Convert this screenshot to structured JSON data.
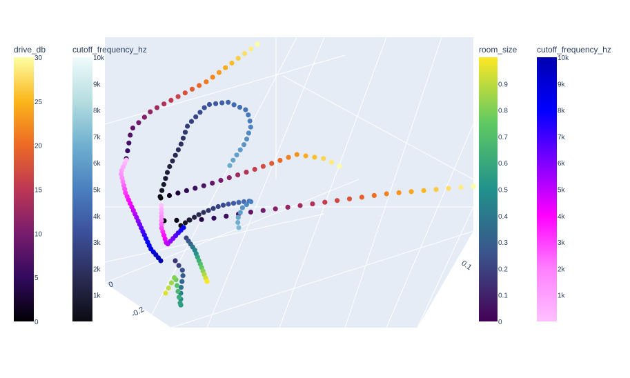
{
  "chart_data": {
    "type": "scatter3d",
    "title": "",
    "scene": {
      "background": "#e5ecf6",
      "gridColor": "#ffffff",
      "visibleTickLabels": [
        "0",
        "-0.2",
        "0.1"
      ]
    },
    "colorbars": [
      {
        "title": "drive_db",
        "colorscale": [
          "#000004",
          "#320a5e",
          "#781c6d",
          "#bc3754",
          "#ed6925",
          "#fbb61a",
          "#fcffa4"
        ],
        "range": [
          0,
          30
        ],
        "ticks": [
          {
            "value": 0,
            "label": "0"
          },
          {
            "value": 5,
            "label": "5"
          },
          {
            "value": 10,
            "label": "10"
          },
          {
            "value": 15,
            "label": "15"
          },
          {
            "value": 20,
            "label": "20"
          },
          {
            "value": 25,
            "label": "25"
          },
          {
            "value": 30,
            "label": "30"
          }
        ]
      },
      {
        "title": "cutoff_frequency_hz",
        "colorscale": [
          "#0b0b12",
          "#2b2c55",
          "#3c4f9a",
          "#4a7fbf",
          "#6fb0cf",
          "#b5dde0",
          "#f0fbfb"
        ],
        "range": [
          0,
          10000
        ],
        "ticks": [
          {
            "value": 1000,
            "label": "1k"
          },
          {
            "value": 2000,
            "label": "2k"
          },
          {
            "value": 3000,
            "label": "3k"
          },
          {
            "value": 4000,
            "label": "4k"
          },
          {
            "value": 5000,
            "label": "5k"
          },
          {
            "value": 6000,
            "label": "6k"
          },
          {
            "value": 7000,
            "label": "7k"
          },
          {
            "value": 8000,
            "label": "8k"
          },
          {
            "value": 9000,
            "label": "9k"
          },
          {
            "value": 10000,
            "label": "10k"
          }
        ]
      },
      {
        "title": "room_size",
        "colorscale": [
          "#440154",
          "#3b528b",
          "#21918c",
          "#5ec962",
          "#fde725"
        ],
        "range": [
          0,
          1
        ],
        "ticks": [
          {
            "value": 0,
            "label": "0"
          },
          {
            "value": 0.1,
            "label": "0.1"
          },
          {
            "value": 0.2,
            "label": "0.2"
          },
          {
            "value": 0.3,
            "label": "0.3"
          },
          {
            "value": 0.4,
            "label": "0.4"
          },
          {
            "value": 0.5,
            "label": "0.5"
          },
          {
            "value": 0.6,
            "label": "0.6"
          },
          {
            "value": 0.7,
            "label": "0.7"
          },
          {
            "value": 0.8,
            "label": "0.8"
          },
          {
            "value": 0.9,
            "label": "0.9"
          }
        ]
      },
      {
        "title": "cutoff_frequency_hz",
        "colorscale": [
          "#ffc0ff",
          "#ff80ff",
          "#ff00ff",
          "#8000ff",
          "#0000ff",
          "#0000b0"
        ],
        "range": [
          0,
          10000
        ],
        "ticks": [
          {
            "value": 1000,
            "label": "1k"
          },
          {
            "value": 2000,
            "label": "2k"
          },
          {
            "value": 3000,
            "label": "3k"
          },
          {
            "value": 4000,
            "label": "4k"
          },
          {
            "value": 5000,
            "label": "5k"
          },
          {
            "value": 6000,
            "label": "6k"
          },
          {
            "value": 7000,
            "label": "7k"
          },
          {
            "value": 8000,
            "label": "8k"
          },
          {
            "value": 9000,
            "label": "9k"
          },
          {
            "value": 10000,
            "label": "10k"
          }
        ]
      }
    ],
    "series": [
      {
        "colorscale_index": 0,
        "value_range": [
          0,
          30
        ],
        "start": 0,
        "end": 30
      },
      {
        "colorscale_index": 0,
        "value_range": [
          0,
          30
        ],
        "start": 0,
        "end": 30
      },
      {
        "colorscale_index": 0,
        "value_range": [
          0,
          30
        ],
        "start": 4,
        "end": 30
      },
      {
        "colorscale_index": 1,
        "value_range": [
          0,
          10000
        ],
        "start": 200,
        "end": 6500
      },
      {
        "colorscale_index": 1,
        "value_range": [
          0,
          10000
        ],
        "start": 200,
        "end": 7000
      },
      {
        "colorscale_index": 2,
        "value_range": [
          0,
          1
        ],
        "start": 0.2,
        "end": 1.0
      },
      {
        "colorscale_index": 2,
        "value_range": [
          0,
          1
        ],
        "start": 0.15,
        "end": 0.95
      },
      {
        "colorscale_index": 3,
        "value_range": [
          0,
          10000
        ],
        "start": 0,
        "end": 10000
      },
      {
        "colorscale_index": 3,
        "value_range": [
          0,
          10000
        ],
        "start": 0,
        "end": 8000
      }
    ]
  }
}
